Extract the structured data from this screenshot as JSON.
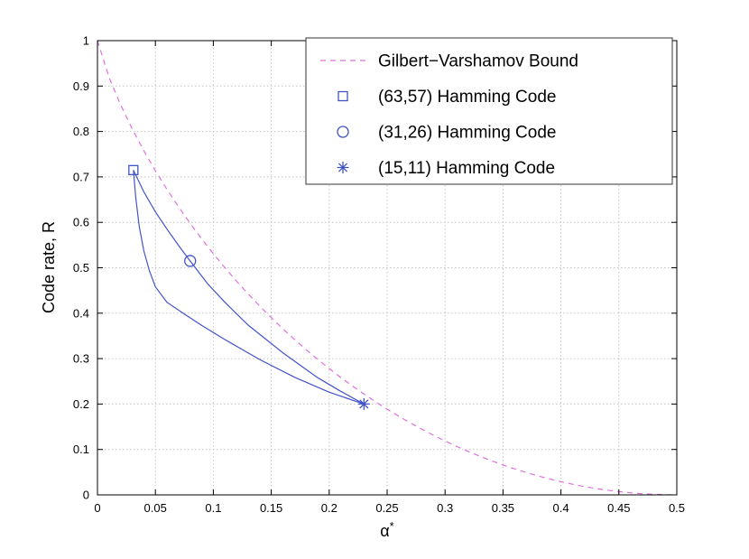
{
  "figure": {
    "background": "#ffffff",
    "axis_color": "#000000",
    "grid_color": "#c4c4c4",
    "legend_border_color": "#333333"
  },
  "chart_data": {
    "type": "line",
    "title": "",
    "xlabel": "α",
    "xlabel_sup": "*",
    "ylabel": "Code rate, R",
    "xlim": [
      0,
      0.5
    ],
    "ylim": [
      0,
      1
    ],
    "grid": true,
    "legend_position": "top-right",
    "xticks": [
      0,
      0.05,
      0.1,
      0.15,
      0.2,
      0.25,
      0.3,
      0.35,
      0.4,
      0.45,
      0.5
    ],
    "yticks": [
      0,
      0.1,
      0.2,
      0.3,
      0.4,
      0.5,
      0.6,
      0.7,
      0.8,
      0.9,
      1
    ],
    "xtick_labels": [
      "0",
      "0.05",
      "0.1",
      "0.15",
      "0.2",
      "0.25",
      "0.3",
      "0.35",
      "0.4",
      "0.45",
      "0.5"
    ],
    "ytick_labels": [
      "0",
      "0.1",
      "0.2",
      "0.3",
      "0.4",
      "0.5",
      "0.6",
      "0.7",
      "0.8",
      "0.9",
      "1"
    ],
    "series": [
      {
        "id": "gv-bound",
        "name": "Gilbert−Varshamov Bound",
        "type": "line",
        "style": "dashed",
        "color": "#e070e0",
        "legend": true,
        "marker": "none",
        "x": [
          0,
          0.01,
          0.02,
          0.03,
          0.04,
          0.05,
          0.06,
          0.07,
          0.08,
          0.09,
          0.1,
          0.11,
          0.12,
          0.13,
          0.14,
          0.15,
          0.16,
          0.17,
          0.18,
          0.19,
          0.2,
          0.21,
          0.22,
          0.23,
          0.24,
          0.25,
          0.26,
          0.27,
          0.28,
          0.29,
          0.3,
          0.31,
          0.32,
          0.33,
          0.34,
          0.35,
          0.36,
          0.37,
          0.38,
          0.39,
          0.4,
          0.41,
          0.42,
          0.43,
          0.44,
          0.45,
          0.46,
          0.47,
          0.48,
          0.49,
          0.5
        ],
        "y": [
          1,
          0.9192,
          0.8586,
          0.8056,
          0.7577,
          0.7136,
          0.6726,
          0.6341,
          0.5978,
          0.5635,
          0.531,
          0.5001,
          0.4706,
          0.4426,
          0.4158,
          0.3902,
          0.3657,
          0.3423,
          0.3199,
          0.2985,
          0.2781,
          0.2585,
          0.2398,
          0.222,
          0.205,
          0.1887,
          0.1733,
          0.1585,
          0.1445,
          0.1313,
          0.1187,
          0.1068,
          0.0956,
          0.0851,
          0.0752,
          0.0659,
          0.0573,
          0.0493,
          0.042,
          0.0352,
          0.029,
          0.0235,
          0.0185,
          0.0142,
          0.0104,
          0.0072,
          0.0046,
          0.0026,
          0.0012,
          0.0003,
          0
        ]
      },
      {
        "id": "hamming-curve-upper",
        "name": "",
        "type": "line",
        "style": "solid",
        "color": "#4253c8",
        "legend": false,
        "marker": "none",
        "x": [
          0.031,
          0.04,
          0.05,
          0.06,
          0.07,
          0.08,
          0.095,
          0.11,
          0.13,
          0.16,
          0.19,
          0.21,
          0.23
        ],
        "y": [
          0.715,
          0.667,
          0.623,
          0.585,
          0.549,
          0.515,
          0.465,
          0.424,
          0.374,
          0.313,
          0.258,
          0.228,
          0.2
        ]
      },
      {
        "id": "hamming-curve-lower",
        "name": "",
        "type": "line",
        "style": "solid",
        "color": "#4253c8",
        "legend": false,
        "marker": "none",
        "x": [
          0.031,
          0.033,
          0.036,
          0.04,
          0.045,
          0.05,
          0.06,
          0.075,
          0.09,
          0.11,
          0.14,
          0.17,
          0.2,
          0.23
        ],
        "y": [
          0.715,
          0.655,
          0.592,
          0.537,
          0.492,
          0.458,
          0.424,
          0.398,
          0.373,
          0.342,
          0.298,
          0.259,
          0.226,
          0.2
        ]
      },
      {
        "id": "hamming-63-57",
        "name": "(63,57) Hamming Code",
        "type": "scatter",
        "marker": "square",
        "color": "#4253c8",
        "legend": true,
        "x": [
          0.031
        ],
        "y": [
          0.715
        ]
      },
      {
        "id": "hamming-31-26",
        "name": "(31,26) Hamming Code",
        "type": "scatter",
        "marker": "circle",
        "color": "#4253c8",
        "legend": true,
        "x": [
          0.08
        ],
        "y": [
          0.515
        ]
      },
      {
        "id": "hamming-15-11",
        "name": "(15,11) Hamming Code",
        "type": "scatter",
        "marker": "asterisk",
        "color": "#4253c8",
        "legend": true,
        "x": [
          0.23
        ],
        "y": [
          0.2
        ]
      }
    ]
  }
}
